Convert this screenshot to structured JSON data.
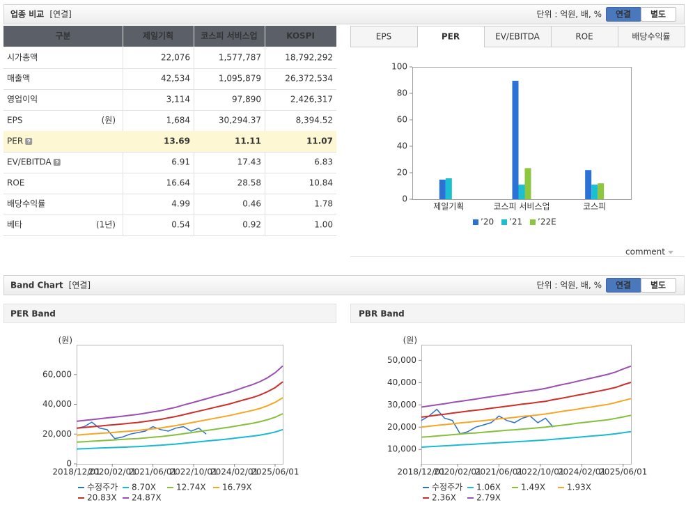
{
  "sections": [
    {
      "title": "업종 비교",
      "tag": "[연결]",
      "unit": "단위 : 억원, 배, %",
      "buttons": [
        {
          "label": "연결",
          "active": true
        },
        {
          "label": "별도"
        }
      ]
    },
    {
      "title": "Band Chart",
      "tag": "[연결]",
      "unit": "단위 : 억원, 배, %",
      "buttons": [
        {
          "label": "연결",
          "active": true
        },
        {
          "label": "별도"
        }
      ]
    }
  ],
  "table": {
    "columns": [
      "구분",
      "제일기획",
      "코스피 서비스업",
      "KOSPI"
    ],
    "rows": [
      {
        "label": "시가총액",
        "values": [
          "22,076",
          "1,577,787",
          "18,792,292"
        ]
      },
      {
        "label": "매출액",
        "values": [
          "42,534",
          "1,095,879",
          "26,372,534"
        ]
      },
      {
        "label": "영업이익",
        "values": [
          "3,114",
          "97,890",
          "2,426,317"
        ]
      },
      {
        "label": "EPS",
        "unit": "(원)",
        "values": [
          "1,684",
          "30,294.37",
          "8,394.52"
        ]
      },
      {
        "label": "PER",
        "help": true,
        "highlight": true,
        "values": [
          "13.69",
          "11.11",
          "11.07"
        ]
      },
      {
        "label": "EV/EBITDA",
        "help": true,
        "values": [
          "6.91",
          "17.43",
          "6.83"
        ]
      },
      {
        "label": "ROE",
        "values": [
          "16.64",
          "28.58",
          "10.84"
        ]
      },
      {
        "label": "배당수익률",
        "values": [
          "4.99",
          "0.46",
          "1.78"
        ]
      },
      {
        "label": "베타",
        "unit": "(1년)",
        "values": [
          "0.54",
          "0.92",
          "1.00"
        ]
      }
    ]
  },
  "tabs": [
    {
      "label": "EPS"
    },
    {
      "label": "PER",
      "active": true
    },
    {
      "label": "EV/EBITDA"
    },
    {
      "label": "ROE"
    },
    {
      "label": "배당수익률"
    }
  ],
  "comment": "comment",
  "chart_data": [
    {
      "type": "bar",
      "categories": [
        "제일기획",
        "코스피 서비스업",
        "코스피"
      ],
      "series": [
        {
          "name": "’20",
          "color": "#2b72d6",
          "values": [
            14.8,
            89.5,
            22
          ]
        },
        {
          "name": "’21",
          "color": "#1bbfd0",
          "values": [
            15.8,
            11,
            11
          ]
        },
        {
          "name": "’22E",
          "color": "#8dc63f",
          "values": [
            null,
            23.5,
            12
          ]
        }
      ],
      "ylim": [
        0,
        100
      ],
      "yticks": [
        0,
        20,
        40,
        60,
        80,
        100
      ]
    },
    {
      "type": "line",
      "title": "PER Band",
      "ylabel": "(원)",
      "x": [
        "2018/12/01",
        "2019/03/01",
        "2019/06/01",
        "2019/09/01",
        "2019/12/01",
        "2020/03/01",
        "2020/06/01",
        "2020/09/01",
        "2020/12/01",
        "2021/03/01",
        "2021/06/01",
        "2021/09/01",
        "2021/12/01",
        "2022/03/01",
        "2022/06/01",
        "2022/09/01",
        "2022/12/01",
        "2023/03/01",
        "2023/06/01",
        "2023/09/01",
        "2023/12/01",
        "2024/03/01",
        "2024/06/01",
        "2024/09/01",
        "2024/12/01",
        "2025/03/01",
        "2025/06/01",
        "2025/09/01"
      ],
      "xlim": [
        "2018/12/01",
        "2025/09/01"
      ],
      "xticks": [
        "2018/12/01",
        "2020/02/01",
        "2021/06/01",
        "2022/10/01",
        "2024/02/01",
        "2025/06/01"
      ],
      "ylim": [
        0,
        80000
      ],
      "yticks": [
        0,
        {
          "value": 20000,
          "label": "20,000"
        },
        {
          "value": 40000,
          "label": "40,000"
        },
        {
          "value": 60000,
          "label": "60,000"
        }
      ],
      "series": [
        {
          "name": "수정주가",
          "color": "#2b6fc9",
          "values": [
            24000,
            25000,
            28000,
            24000,
            23000,
            17000,
            18000,
            20000,
            21000,
            22000,
            25000,
            23000,
            22000,
            24000,
            25000,
            22000,
            24000,
            20000,
            null,
            null,
            null,
            null,
            null,
            null,
            null,
            null,
            null,
            null
          ]
        },
        {
          "name": "8.70X",
          "color": "#19b9cf",
          "values": [
            10000,
            10200,
            10400,
            10600,
            10800,
            11000,
            11200,
            11400,
            11600,
            11900,
            12200,
            12500,
            12900,
            13300,
            13800,
            14300,
            14800,
            15300,
            15800,
            16300,
            16800,
            17400,
            18000,
            18600,
            19300,
            20200,
            21400,
            23000
          ]
        },
        {
          "name": "12.74X",
          "color": "#86bf3c",
          "values": [
            14600,
            14900,
            15200,
            15500,
            15800,
            16100,
            16400,
            16700,
            17000,
            17400,
            17900,
            18300,
            18900,
            19500,
            20200,
            20900,
            21700,
            22400,
            23100,
            23900,
            24600,
            25500,
            26400,
            27200,
            28300,
            29600,
            31300,
            33700
          ]
        },
        {
          "name": "16.79X",
          "color": "#f5a623",
          "values": [
            19300,
            19700,
            20100,
            20500,
            20800,
            21200,
            21600,
            22000,
            22400,
            23000,
            23500,
            24100,
            24900,
            25700,
            26600,
            27600,
            28600,
            29500,
            30500,
            31500,
            32400,
            33600,
            34700,
            35900,
            37200,
            39000,
            41300,
            44400
          ]
        },
        {
          "name": "20.83X",
          "color": "#cc2f2a",
          "values": [
            23900,
            24400,
            24900,
            25400,
            25900,
            26300,
            26800,
            27300,
            27800,
            28500,
            29200,
            29900,
            30900,
            31800,
            33000,
            34200,
            35400,
            36600,
            37800,
            39000,
            40200,
            41700,
            43100,
            44500,
            46200,
            48400,
            51200,
            55100
          ]
        },
        {
          "name": "24.87X",
          "color": "#9b4fb0",
          "values": [
            28600,
            29200,
            29700,
            30300,
            30900,
            31400,
            32000,
            32600,
            33200,
            34000,
            34900,
            35700,
            36900,
            38000,
            39500,
            40900,
            42300,
            43700,
            45200,
            46600,
            48000,
            49700,
            51500,
            53200,
            55200,
            57800,
            61200,
            65800
          ]
        }
      ]
    },
    {
      "type": "line",
      "title": "PBR Band",
      "ylabel": "(원)",
      "x": [
        "2018/12/01",
        "2019/03/01",
        "2019/06/01",
        "2019/09/01",
        "2019/12/01",
        "2020/03/01",
        "2020/06/01",
        "2020/09/01",
        "2020/12/01",
        "2021/03/01",
        "2021/06/01",
        "2021/09/01",
        "2021/12/01",
        "2022/03/01",
        "2022/06/01",
        "2022/09/01",
        "2022/12/01",
        "2023/03/01",
        "2023/06/01",
        "2023/09/01",
        "2023/12/01",
        "2024/03/01",
        "2024/06/01",
        "2024/09/01",
        "2024/12/01",
        "2025/03/01",
        "2025/06/01",
        "2025/09/01"
      ],
      "xlim": [
        "2018/12/01",
        "2025/09/01"
      ],
      "xticks": [
        "2018/12/01",
        "2020/02/01",
        "2021/06/01",
        "2022/10/01",
        "2024/02/01",
        "2025/06/01"
      ],
      "ylim": [
        3500,
        57000
      ],
      "yticks": [
        {
          "value": 10000,
          "label": "10,000"
        },
        {
          "value": 20000,
          "label": "20,000"
        },
        {
          "value": 30000,
          "label": "30,000"
        },
        {
          "value": 40000,
          "label": "40,000"
        },
        {
          "value": 50000,
          "label": "50,000"
        }
      ],
      "series": [
        {
          "name": "수정주가",
          "color": "#2b6fc9",
          "values": [
            23000,
            25000,
            28000,
            24000,
            23000,
            17000,
            18000,
            20000,
            21000,
            22000,
            25000,
            23000,
            22000,
            24000,
            25000,
            22000,
            24000,
            20000,
            null,
            null,
            null,
            null,
            null,
            null,
            null,
            null,
            null,
            null
          ]
        },
        {
          "name": "1.06X",
          "color": "#19b9cf",
          "values": [
            11000,
            11200,
            11400,
            11600,
            11800,
            12000,
            12200,
            12400,
            12600,
            12800,
            13000,
            13200,
            13400,
            13600,
            13800,
            14000,
            14200,
            14500,
            14800,
            15100,
            15400,
            15700,
            16000,
            16300,
            16600,
            17000,
            17500,
            18000
          ]
        },
        {
          "name": "1.49X",
          "color": "#86bf3c",
          "values": [
            15500,
            15700,
            16000,
            16300,
            16600,
            16900,
            17200,
            17400,
            17700,
            18000,
            18300,
            18600,
            18800,
            19100,
            19400,
            19700,
            20000,
            20400,
            20800,
            21200,
            21700,
            22100,
            22500,
            22900,
            23300,
            23900,
            24600,
            25300
          ]
        },
        {
          "name": "1.93X",
          "color": "#f5a623",
          "values": [
            20000,
            20400,
            20800,
            21100,
            21500,
            21900,
            22200,
            22600,
            22900,
            23300,
            23700,
            24000,
            24400,
            24800,
            25100,
            25500,
            25900,
            26400,
            27000,
            27500,
            28000,
            28600,
            29100,
            29700,
            30200,
            31000,
            31900,
            32800
          ]
        },
        {
          "name": "2.36X",
          "color": "#cc2f2a",
          "values": [
            24500,
            24900,
            25400,
            25800,
            26300,
            26700,
            27200,
            27600,
            28000,
            28500,
            28900,
            29400,
            29800,
            30300,
            30700,
            31200,
            31600,
            32300,
            32900,
            33600,
            34300,
            34900,
            35600,
            36300,
            37000,
            37800,
            39000,
            40100
          ]
        },
        {
          "name": "2.79X",
          "color": "#9b4fb0",
          "values": [
            29000,
            29500,
            30000,
            30500,
            31100,
            31600,
            32100,
            32600,
            33200,
            33700,
            34200,
            34700,
            35300,
            35800,
            36300,
            36800,
            37400,
            38200,
            39000,
            39700,
            40500,
            41300,
            42100,
            42900,
            43700,
            44700,
            46100,
            47400
          ]
        }
      ]
    }
  ]
}
